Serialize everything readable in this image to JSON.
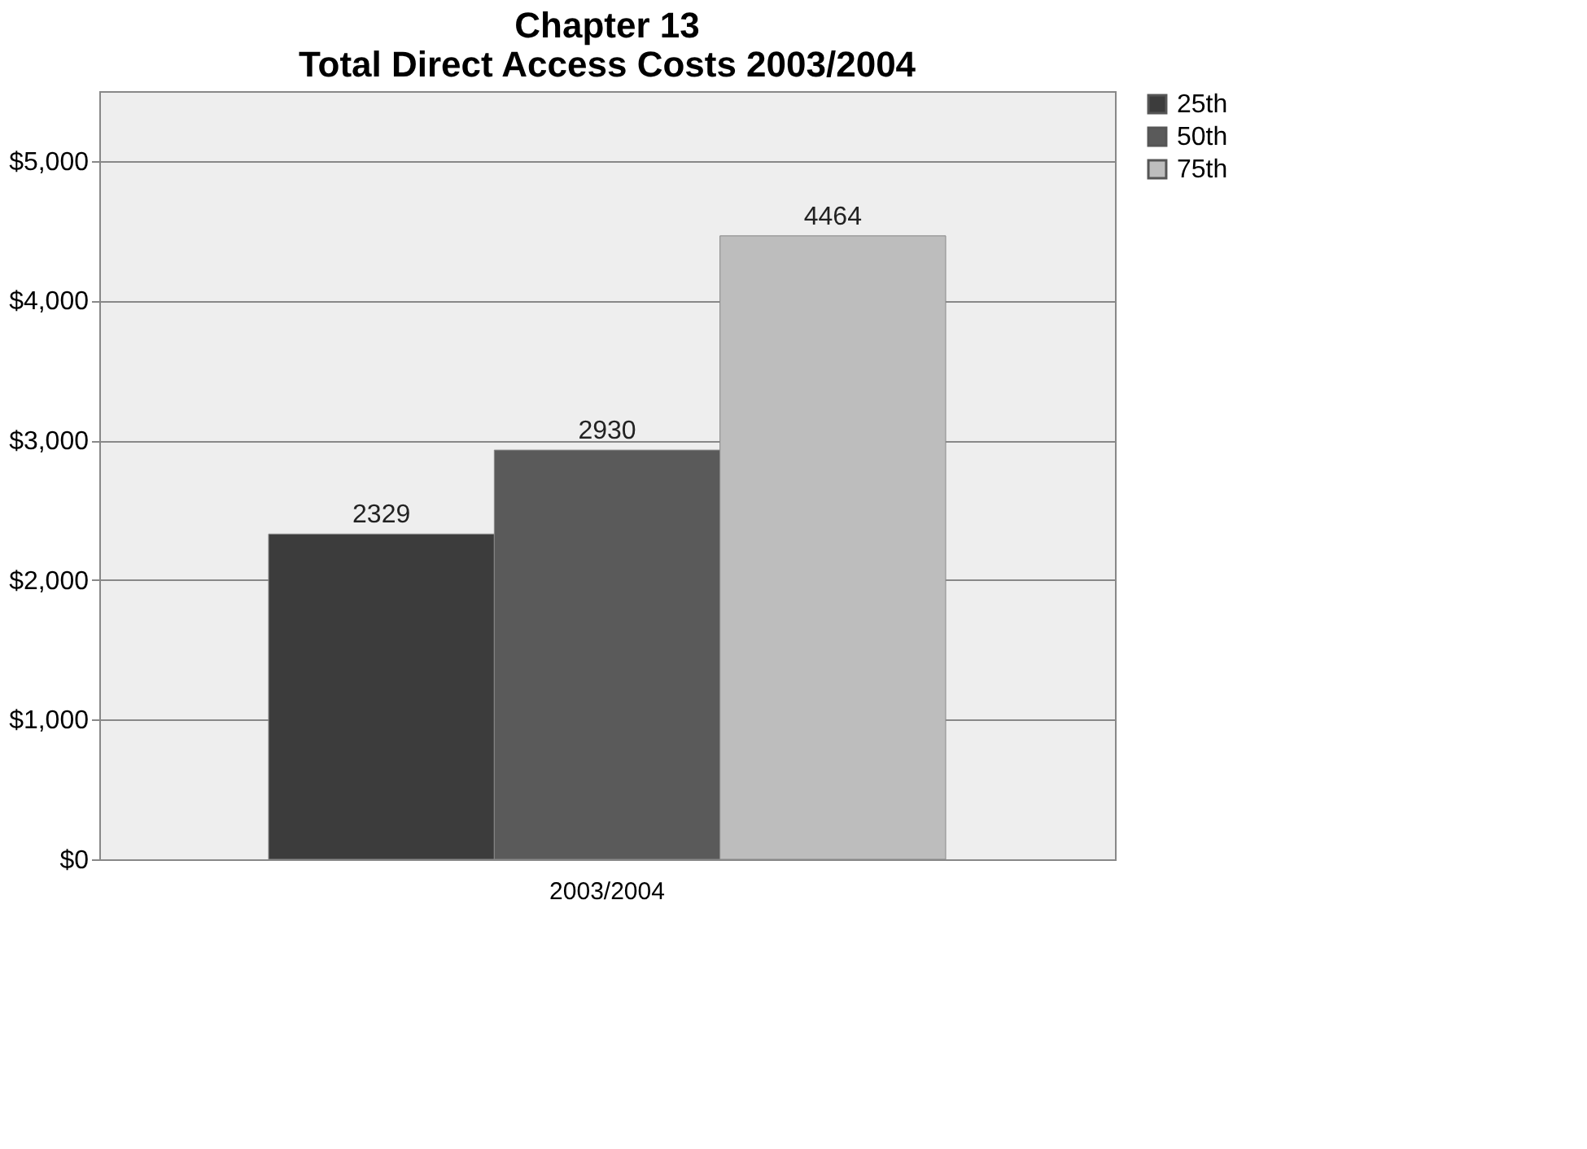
{
  "chart_data": {
    "type": "bar",
    "title": [
      "Chapter 13",
      "Total Direct Access Costs 2003/2004"
    ],
    "categories": [
      "2003/2004"
    ],
    "series": [
      {
        "name": "25th",
        "color": "#3c3c3c",
        "values": [
          2329
        ]
      },
      {
        "name": "50th",
        "color": "#5a5a5a",
        "values": [
          2930
        ]
      },
      {
        "name": "75th",
        "color": "#bdbdbd",
        "values": [
          4464
        ]
      }
    ],
    "ylim": [
      0,
      5500
    ],
    "yticks": [
      {
        "value": 0,
        "label": "$0"
      },
      {
        "value": 1000,
        "label": "$1,000"
      },
      {
        "value": 2000,
        "label": "$2,000"
      },
      {
        "value": 3000,
        "label": "$3,000"
      },
      {
        "value": 4000,
        "label": "$4,000"
      },
      {
        "value": 5000,
        "label": "$5,000"
      }
    ],
    "grid": "y",
    "legend": "right",
    "data_labels": true
  }
}
